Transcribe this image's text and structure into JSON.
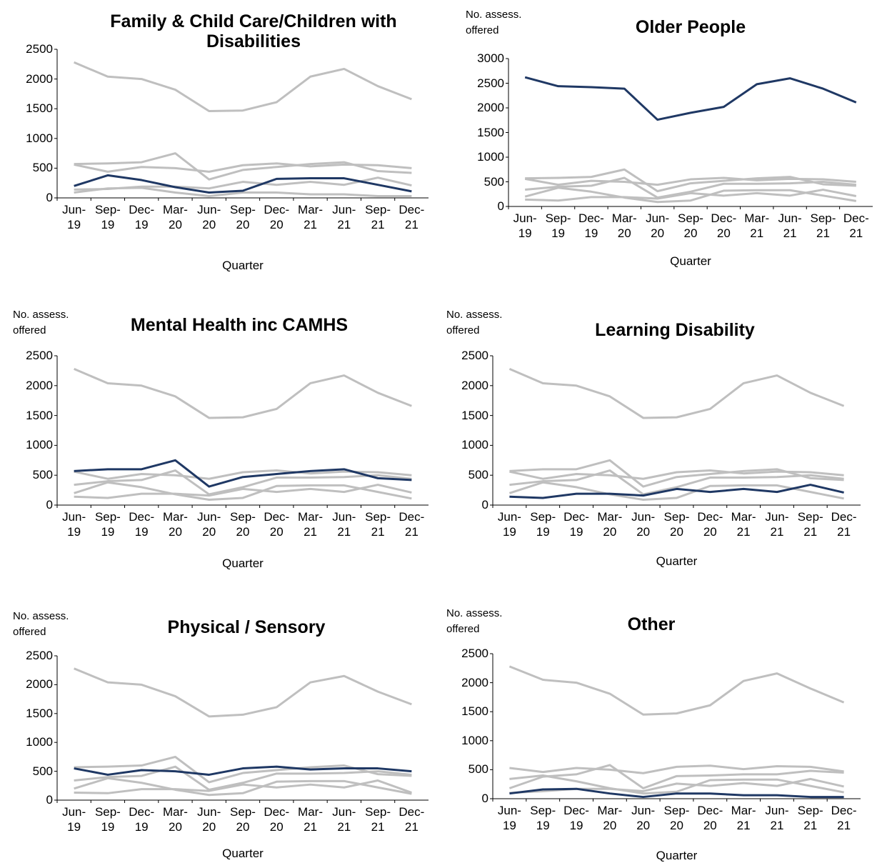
{
  "chart_data": [
    {
      "type": "line",
      "title": "Family & Child Care/Children with Disabilities",
      "x_label": "Quarter",
      "categories": [
        "Jun-19",
        "Sep-19",
        "Dec-19",
        "Mar-20",
        "Jun-20",
        "Sep-20",
        "Dec-20",
        "Mar-21",
        "Jun-21",
        "Sep-21",
        "Dec-21"
      ],
      "ylim": [
        0,
        2500
      ],
      "yticks": [
        0,
        500,
        1000,
        1500,
        2000,
        2500
      ],
      "series": [
        {
          "color": "#bfbfbf",
          "values": [
            2280,
            2040,
            2000,
            1820,
            1460,
            1470,
            1610,
            2040,
            2170,
            1880,
            1660
          ]
        },
        {
          "color": "#bfbfbf",
          "values": [
            570,
            580,
            600,
            750,
            310,
            470,
            520,
            570,
            600,
            450,
            420
          ]
        },
        {
          "color": "#bfbfbf",
          "values": [
            140,
            150,
            190,
            190,
            160,
            270,
            220,
            270,
            220,
            340,
            210
          ]
        },
        {
          "color": "#bfbfbf",
          "values": [
            560,
            440,
            520,
            500,
            440,
            550,
            580,
            530,
            560,
            550,
            500
          ]
        },
        {
          "color": "#bfbfbf",
          "values": [
            90,
            160,
            170,
            90,
            30,
            90,
            90,
            60,
            60,
            30,
            30
          ]
        },
        {
          "color": "#1f3864",
          "values": [
            200,
            380,
            300,
            180,
            90,
            120,
            320,
            330,
            330,
            220,
            110
          ]
        }
      ]
    },
    {
      "type": "line",
      "title": "Older People",
      "y_label": "No. assess. offered",
      "x_label": "Quarter",
      "categories": [
        "Jun-19",
        "Sep-19",
        "Dec-19",
        "Mar-20",
        "Jun-20",
        "Sep-20",
        "Dec-20",
        "Mar-21",
        "Jun-21",
        "Sep-21",
        "Dec-21"
      ],
      "ylim": [
        0,
        3000
      ],
      "yticks": [
        0,
        500,
        1000,
        1500,
        2000,
        2500,
        3000
      ],
      "series": [
        {
          "color": "#bfbfbf",
          "values": [
            570,
            580,
            600,
            750,
            310,
            470,
            520,
            570,
            600,
            450,
            420
          ]
        },
        {
          "color": "#bfbfbf",
          "values": [
            140,
            120,
            190,
            190,
            160,
            270,
            220,
            270,
            220,
            340,
            210
          ]
        },
        {
          "color": "#bfbfbf",
          "values": [
            560,
            440,
            520,
            500,
            440,
            550,
            580,
            530,
            560,
            550,
            500
          ]
        },
        {
          "color": "#bfbfbf",
          "values": [
            200,
            380,
            300,
            180,
            90,
            120,
            320,
            330,
            330,
            220,
            110
          ]
        },
        {
          "color": "#bfbfbf",
          "values": [
            340,
            400,
            420,
            580,
            180,
            300,
            460,
            460,
            470,
            500,
            440
          ]
        },
        {
          "color": "#1f3864",
          "values": [
            2620,
            2440,
            2420,
            2390,
            1760,
            1900,
            2020,
            2480,
            2600,
            2390,
            2110
          ]
        }
      ]
    },
    {
      "type": "line",
      "title": "Mental Health inc CAMHS",
      "y_label": "No. assess. offered",
      "x_label": "Quarter",
      "categories": [
        "Jun-19",
        "Sep-19",
        "Dec-19",
        "Mar-20",
        "Jun-20",
        "Sep-20",
        "Dec-20",
        "Mar-21",
        "Jun-21",
        "Sep-21",
        "Dec-21"
      ],
      "ylim": [
        0,
        2500
      ],
      "yticks": [
        0,
        500,
        1000,
        1500,
        2000,
        2500
      ],
      "series": [
        {
          "color": "#bfbfbf",
          "values": [
            2280,
            2040,
            2000,
            1820,
            1460,
            1470,
            1610,
            2040,
            2170,
            1880,
            1660
          ]
        },
        {
          "color": "#bfbfbf",
          "values": [
            140,
            120,
            190,
            190,
            160,
            270,
            220,
            270,
            220,
            340,
            210
          ]
        },
        {
          "color": "#bfbfbf",
          "values": [
            560,
            440,
            520,
            500,
            440,
            550,
            580,
            530,
            560,
            550,
            500
          ]
        },
        {
          "color": "#bfbfbf",
          "values": [
            200,
            380,
            300,
            180,
            90,
            120,
            320,
            330,
            330,
            220,
            110
          ]
        },
        {
          "color": "#bfbfbf",
          "values": [
            340,
            400,
            420,
            580,
            180,
            300,
            460,
            460,
            470,
            500,
            440
          ]
        },
        {
          "color": "#1f3864",
          "values": [
            570,
            600,
            600,
            750,
            310,
            470,
            520,
            570,
            600,
            450,
            420
          ]
        }
      ]
    },
    {
      "type": "line",
      "title": "Learning Disability",
      "y_label": "No. assess. offered",
      "x_label": "Quarter",
      "categories": [
        "Jun-19",
        "Sep-19",
        "Dec-19",
        "Mar-20",
        "Jun-20",
        "Sep-20",
        "Dec-20",
        "Mar-21",
        "Jun-21",
        "Sep-21",
        "Dec-21"
      ],
      "ylim": [
        0,
        2500
      ],
      "yticks": [
        0,
        500,
        1000,
        1500,
        2000,
        2500
      ],
      "series": [
        {
          "color": "#bfbfbf",
          "values": [
            2280,
            2040,
            2000,
            1820,
            1460,
            1470,
            1610,
            2040,
            2170,
            1880,
            1660
          ]
        },
        {
          "color": "#bfbfbf",
          "values": [
            570,
            600,
            600,
            750,
            310,
            470,
            520,
            570,
            600,
            450,
            420
          ]
        },
        {
          "color": "#bfbfbf",
          "values": [
            560,
            440,
            520,
            500,
            440,
            550,
            580,
            530,
            560,
            550,
            500
          ]
        },
        {
          "color": "#bfbfbf",
          "values": [
            200,
            380,
            300,
            180,
            90,
            120,
            320,
            330,
            330,
            220,
            110
          ]
        },
        {
          "color": "#bfbfbf",
          "values": [
            340,
            400,
            420,
            580,
            180,
            300,
            460,
            460,
            470,
            500,
            440
          ]
        },
        {
          "color": "#1f3864",
          "values": [
            140,
            120,
            190,
            190,
            160,
            270,
            220,
            270,
            220,
            340,
            210
          ]
        }
      ]
    },
    {
      "type": "line",
      "title": "Physical / Sensory",
      "y_label": "No. assess. offered",
      "x_label": "Quarter",
      "categories": [
        "Jun-19",
        "Sep-19",
        "Dec-19",
        "Mar-20",
        "Jun-20",
        "Sep-20",
        "Dec-20",
        "Mar-21",
        "Jun-21",
        "Sep-21",
        "Dec-21"
      ],
      "ylim": [
        0,
        2500
      ],
      "yticks": [
        0,
        500,
        1000,
        1500,
        2000,
        2500
      ],
      "series": [
        {
          "color": "#bfbfbf",
          "values": [
            2280,
            2040,
            2000,
            1800,
            1450,
            1480,
            1610,
            2040,
            2150,
            1880,
            1660
          ]
        },
        {
          "color": "#bfbfbf",
          "values": [
            570,
            580,
            600,
            750,
            310,
            470,
            520,
            570,
            600,
            450,
            420
          ]
        },
        {
          "color": "#bfbfbf",
          "values": [
            130,
            120,
            190,
            190,
            160,
            270,
            220,
            270,
            220,
            340,
            130
          ]
        },
        {
          "color": "#bfbfbf",
          "values": [
            200,
            380,
            300,
            180,
            90,
            120,
            320,
            330,
            330,
            220,
            110
          ]
        },
        {
          "color": "#bfbfbf",
          "values": [
            340,
            400,
            420,
            580,
            180,
            300,
            460,
            460,
            470,
            500,
            440
          ]
        },
        {
          "color": "#1f3864",
          "values": [
            550,
            440,
            520,
            500,
            440,
            550,
            580,
            530,
            550,
            550,
            500
          ]
        }
      ]
    },
    {
      "type": "line",
      "title": "Other",
      "y_label": "No. assess. offered",
      "x_label": "Quarter",
      "categories": [
        "Jun-19",
        "Sep-19",
        "Dec-19",
        "Mar-20",
        "Jun-20",
        "Sep-20",
        "Dec-20",
        "Mar-21",
        "Jun-21",
        "Sep-21",
        "Dec-21"
      ],
      "ylim": [
        0,
        2500
      ],
      "yticks": [
        0,
        500,
        1000,
        1500,
        2000,
        2500
      ],
      "series": [
        {
          "color": "#bfbfbf",
          "values": [
            2280,
            2050,
            2000,
            1810,
            1450,
            1470,
            1610,
            2030,
            2160,
            1900,
            1660
          ]
        },
        {
          "color": "#bfbfbf",
          "values": [
            530,
            460,
            530,
            500,
            440,
            550,
            570,
            510,
            560,
            550,
            470
          ]
        },
        {
          "color": "#bfbfbf",
          "values": [
            180,
            380,
            420,
            580,
            180,
            390,
            400,
            420,
            420,
            480,
            450
          ]
        },
        {
          "color": "#bfbfbf",
          "values": [
            100,
            130,
            170,
            170,
            130,
            260,
            220,
            270,
            220,
            340,
            210
          ]
        },
        {
          "color": "#bfbfbf",
          "values": [
            340,
            400,
            300,
            180,
            90,
            120,
            320,
            330,
            330,
            220,
            110
          ]
        },
        {
          "color": "#1f3864",
          "values": [
            90,
            160,
            170,
            90,
            30,
            90,
            90,
            60,
            60,
            30,
            30
          ]
        }
      ]
    }
  ]
}
